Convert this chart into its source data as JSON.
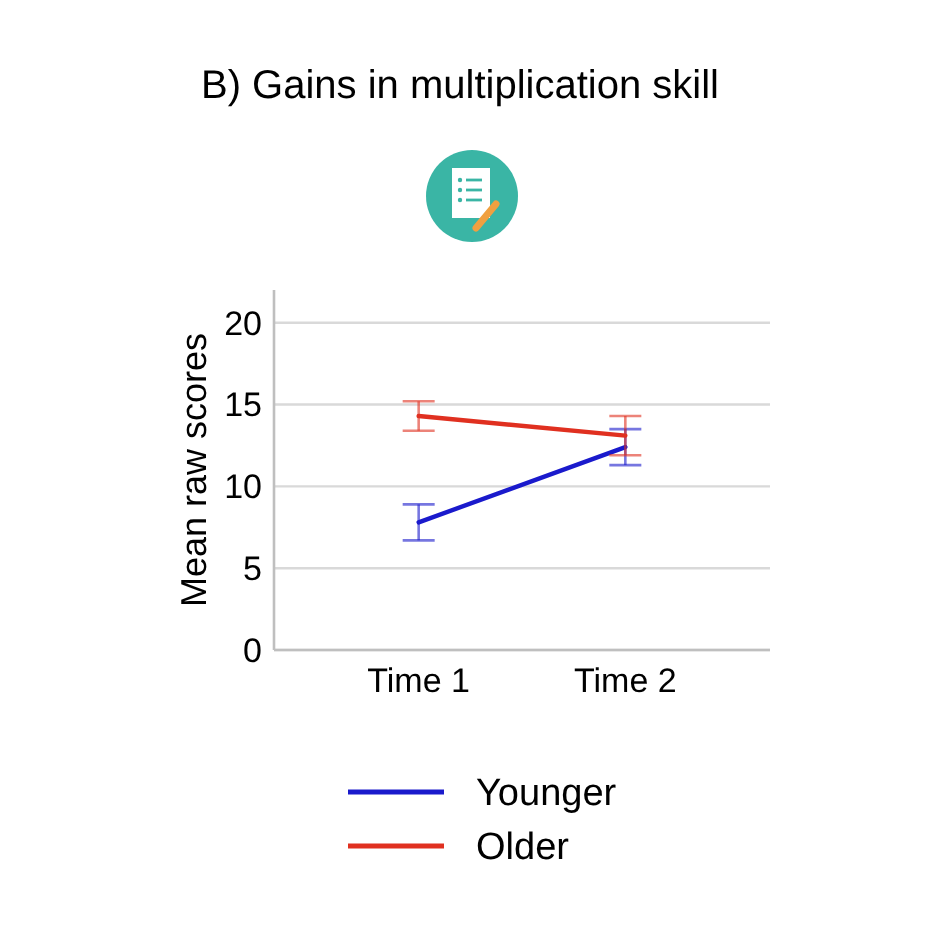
{
  "chart_data": {
    "type": "line",
    "title": "B) Gains in multiplication skill",
    "ylabel": "Mean raw scores",
    "categories": [
      "Time 1",
      "Time 2"
    ],
    "series": [
      {
        "name": "Younger",
        "color": "#1a1acc",
        "values": [
          7.8,
          12.4
        ],
        "errors": [
          1.1,
          1.1
        ]
      },
      {
        "name": "Older",
        "color": "#e03020",
        "values": [
          14.3,
          13.1
        ],
        "errors": [
          0.9,
          1.2
        ]
      }
    ],
    "ylim": [
      0,
      22
    ],
    "yticks": [
      0,
      5,
      10,
      15,
      20
    ],
    "grid": "y",
    "legend": "bottom"
  }
}
